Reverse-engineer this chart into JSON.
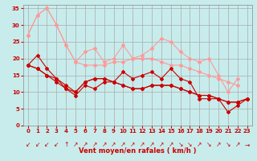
{
  "background_color": "#c8ecec",
  "grid_color": "#aaaaaa",
  "xlabel": "Vent moyen/en rafales ( km/h )",
  "xlabel_color": "#cc0000",
  "x_ticks": [
    0,
    1,
    2,
    3,
    4,
    5,
    6,
    7,
    8,
    9,
    10,
    11,
    12,
    13,
    14,
    15,
    16,
    17,
    18,
    19,
    20,
    21,
    22,
    23
  ],
  "ylim": [
    0,
    36
  ],
  "yticks": [
    0,
    5,
    10,
    15,
    20,
    25,
    30,
    35
  ],
  "series_light": [
    [
      27,
      33,
      35,
      30,
      24,
      19,
      22,
      23,
      19,
      20,
      24,
      20,
      21,
      23,
      26,
      25,
      22,
      20,
      19,
      20,
      15,
      10,
      14,
      null
    ],
    [
      27,
      33,
      35,
      30,
      24,
      19,
      18,
      18,
      18,
      19,
      19,
      20,
      20,
      20,
      19,
      18,
      18,
      17,
      16,
      15,
      14,
      13,
      12,
      null
    ]
  ],
  "series_dark": [
    [
      18,
      21,
      17,
      14,
      11,
      9,
      12,
      11,
      13,
      13,
      16,
      14,
      15,
      16,
      14,
      17,
      14,
      13,
      8,
      8,
      8,
      4,
      6,
      8
    ],
    [
      18,
      17,
      15,
      14,
      12,
      10,
      13,
      14,
      14,
      13,
      12,
      11,
      11,
      12,
      12,
      12,
      11,
      10,
      9,
      9,
      8,
      7,
      7,
      8
    ],
    [
      18,
      17,
      15,
      13,
      11,
      10,
      13,
      14,
      14,
      13,
      12,
      11,
      11,
      12,
      12,
      12,
      11,
      10,
      9,
      9,
      8,
      7,
      7,
      8
    ]
  ],
  "light_color": "#ff9999",
  "dark_color": "#cc0000",
  "marker_size": 2.0,
  "line_width": 0.8,
  "tick_color": "#cc0000",
  "tick_fontsize": 5.0,
  "wind_arrows": [
    "↙",
    "↙",
    "↙",
    "↙",
    "↑",
    "↗",
    "↗",
    "↗",
    "↗",
    "↗",
    "↗",
    "↗",
    "↗",
    "↗",
    "↗",
    "↗",
    "↘",
    "↘",
    "↗",
    "↘",
    "↗",
    "↘",
    "↗",
    "→"
  ]
}
